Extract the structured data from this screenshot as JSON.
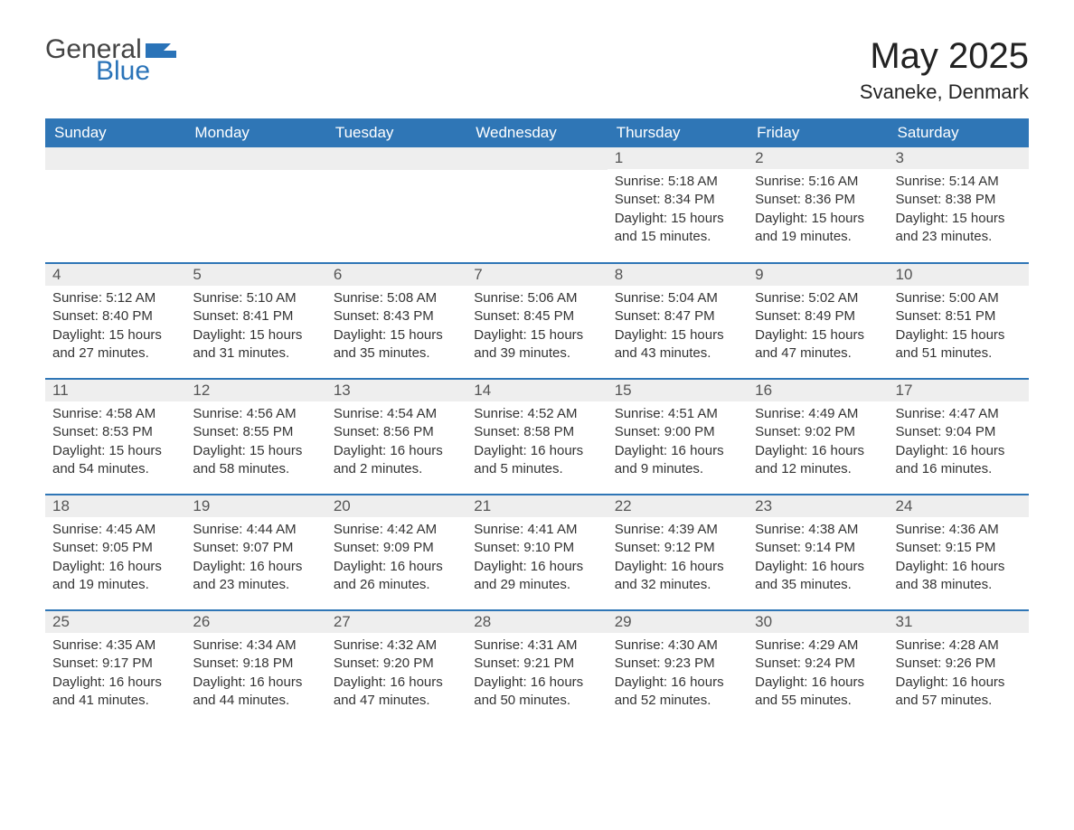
{
  "logo": {
    "text1": "General",
    "text2": "Blue"
  },
  "title": "May 2025",
  "location": "Svaneke, Denmark",
  "colors": {
    "header_bg": "#2f76b6",
    "header_text": "#ffffff",
    "daynum_bg": "#eeeeee",
    "daynum_text": "#555555",
    "body_text": "#333333",
    "week_border": "#2f76b6",
    "logo_general": "#444444",
    "logo_blue": "#2a73b8",
    "background": "#ffffff"
  },
  "weekdays": [
    "Sunday",
    "Monday",
    "Tuesday",
    "Wednesday",
    "Thursday",
    "Friday",
    "Saturday"
  ],
  "weeks": [
    [
      null,
      null,
      null,
      null,
      {
        "n": "1",
        "sunrise": "5:18 AM",
        "sunset": "8:34 PM",
        "daylight": "15 hours and 15 minutes."
      },
      {
        "n": "2",
        "sunrise": "5:16 AM",
        "sunset": "8:36 PM",
        "daylight": "15 hours and 19 minutes."
      },
      {
        "n": "3",
        "sunrise": "5:14 AM",
        "sunset": "8:38 PM",
        "daylight": "15 hours and 23 minutes."
      }
    ],
    [
      {
        "n": "4",
        "sunrise": "5:12 AM",
        "sunset": "8:40 PM",
        "daylight": "15 hours and 27 minutes."
      },
      {
        "n": "5",
        "sunrise": "5:10 AM",
        "sunset": "8:41 PM",
        "daylight": "15 hours and 31 minutes."
      },
      {
        "n": "6",
        "sunrise": "5:08 AM",
        "sunset": "8:43 PM",
        "daylight": "15 hours and 35 minutes."
      },
      {
        "n": "7",
        "sunrise": "5:06 AM",
        "sunset": "8:45 PM",
        "daylight": "15 hours and 39 minutes."
      },
      {
        "n": "8",
        "sunrise": "5:04 AM",
        "sunset": "8:47 PM",
        "daylight": "15 hours and 43 minutes."
      },
      {
        "n": "9",
        "sunrise": "5:02 AM",
        "sunset": "8:49 PM",
        "daylight": "15 hours and 47 minutes."
      },
      {
        "n": "10",
        "sunrise": "5:00 AM",
        "sunset": "8:51 PM",
        "daylight": "15 hours and 51 minutes."
      }
    ],
    [
      {
        "n": "11",
        "sunrise": "4:58 AM",
        "sunset": "8:53 PM",
        "daylight": "15 hours and 54 minutes."
      },
      {
        "n": "12",
        "sunrise": "4:56 AM",
        "sunset": "8:55 PM",
        "daylight": "15 hours and 58 minutes."
      },
      {
        "n": "13",
        "sunrise": "4:54 AM",
        "sunset": "8:56 PM",
        "daylight": "16 hours and 2 minutes."
      },
      {
        "n": "14",
        "sunrise": "4:52 AM",
        "sunset": "8:58 PM",
        "daylight": "16 hours and 5 minutes."
      },
      {
        "n": "15",
        "sunrise": "4:51 AM",
        "sunset": "9:00 PM",
        "daylight": "16 hours and 9 minutes."
      },
      {
        "n": "16",
        "sunrise": "4:49 AM",
        "sunset": "9:02 PM",
        "daylight": "16 hours and 12 minutes."
      },
      {
        "n": "17",
        "sunrise": "4:47 AM",
        "sunset": "9:04 PM",
        "daylight": "16 hours and 16 minutes."
      }
    ],
    [
      {
        "n": "18",
        "sunrise": "4:45 AM",
        "sunset": "9:05 PM",
        "daylight": "16 hours and 19 minutes."
      },
      {
        "n": "19",
        "sunrise": "4:44 AM",
        "sunset": "9:07 PM",
        "daylight": "16 hours and 23 minutes."
      },
      {
        "n": "20",
        "sunrise": "4:42 AM",
        "sunset": "9:09 PM",
        "daylight": "16 hours and 26 minutes."
      },
      {
        "n": "21",
        "sunrise": "4:41 AM",
        "sunset": "9:10 PM",
        "daylight": "16 hours and 29 minutes."
      },
      {
        "n": "22",
        "sunrise": "4:39 AM",
        "sunset": "9:12 PM",
        "daylight": "16 hours and 32 minutes."
      },
      {
        "n": "23",
        "sunrise": "4:38 AM",
        "sunset": "9:14 PM",
        "daylight": "16 hours and 35 minutes."
      },
      {
        "n": "24",
        "sunrise": "4:36 AM",
        "sunset": "9:15 PM",
        "daylight": "16 hours and 38 minutes."
      }
    ],
    [
      {
        "n": "25",
        "sunrise": "4:35 AM",
        "sunset": "9:17 PM",
        "daylight": "16 hours and 41 minutes."
      },
      {
        "n": "26",
        "sunrise": "4:34 AM",
        "sunset": "9:18 PM",
        "daylight": "16 hours and 44 minutes."
      },
      {
        "n": "27",
        "sunrise": "4:32 AM",
        "sunset": "9:20 PM",
        "daylight": "16 hours and 47 minutes."
      },
      {
        "n": "28",
        "sunrise": "4:31 AM",
        "sunset": "9:21 PM",
        "daylight": "16 hours and 50 minutes."
      },
      {
        "n": "29",
        "sunrise": "4:30 AM",
        "sunset": "9:23 PM",
        "daylight": "16 hours and 52 minutes."
      },
      {
        "n": "30",
        "sunrise": "4:29 AM",
        "sunset": "9:24 PM",
        "daylight": "16 hours and 55 minutes."
      },
      {
        "n": "31",
        "sunrise": "4:28 AM",
        "sunset": "9:26 PM",
        "daylight": "16 hours and 57 minutes."
      }
    ]
  ],
  "labels": {
    "sunrise": "Sunrise: ",
    "sunset": "Sunset: ",
    "daylight": "Daylight: "
  }
}
